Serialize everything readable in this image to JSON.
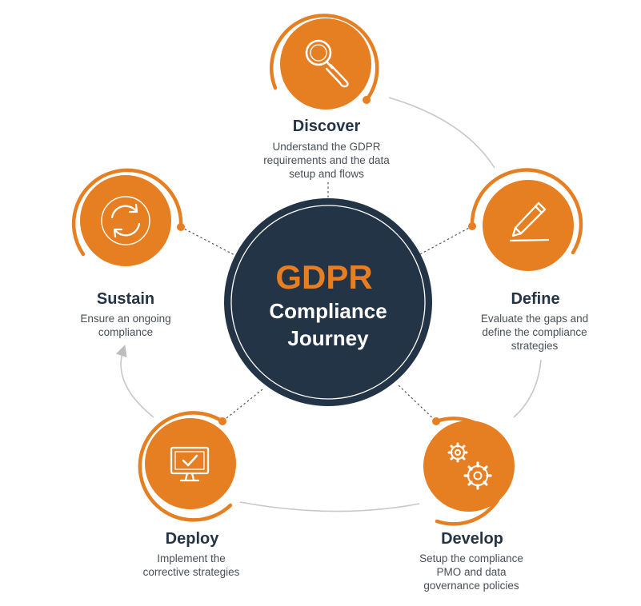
{
  "colors": {
    "accent": "#e67e22",
    "navy": "#243447",
    "connector": "#c8c8c8",
    "text_dark": "#243447",
    "text_body": "#4a4f56"
  },
  "center": {
    "title": "GDPR",
    "line1": "Compliance",
    "line2": "Journey"
  },
  "stages": {
    "discover": {
      "title": "Discover",
      "icon": "magnifier-icon",
      "desc": [
        "Understand the GDPR",
        "requirements and the data",
        "setup and flows"
      ]
    },
    "define": {
      "title": "Define",
      "icon": "pencil-icon",
      "desc": [
        "Evaluate the gaps and",
        "define the compliance",
        "strategies"
      ]
    },
    "develop": {
      "title": "Develop",
      "icon": "gears-icon",
      "desc": [
        "Setup the compliance",
        "PMO and data",
        "governance policies"
      ]
    },
    "deploy": {
      "title": "Deploy",
      "icon": "monitor-check-icon",
      "desc": [
        "Implement the",
        "corrective strategies"
      ]
    },
    "sustain": {
      "title": "Sustain",
      "icon": "refresh-cycle-icon",
      "desc": [
        "Ensure an ongoing",
        "compliance"
      ]
    }
  }
}
